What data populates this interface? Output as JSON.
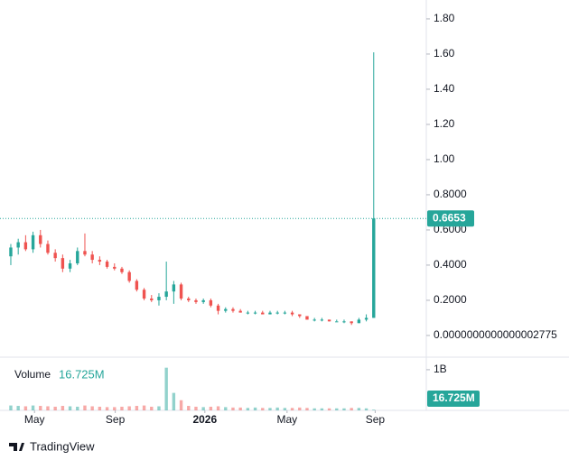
{
  "chart_data": {
    "type": "candlestick",
    "up_color": "#26a69a",
    "down_color": "#ef5350",
    "grid": false,
    "open": [
      0.45,
      0.5,
      0.53,
      0.49,
      0.57,
      0.52,
      0.47,
      0.44,
      0.38,
      0.41,
      0.48,
      0.46,
      0.43,
      0.42,
      0.39,
      0.38,
      0.36,
      0.31,
      0.26,
      0.21,
      0.2,
      0.22,
      0.25,
      0.29,
      0.21,
      0.2,
      0.19,
      0.2,
      0.17,
      0.14,
      0.15,
      0.14,
      0.13,
      0.13,
      0.13,
      0.12,
      0.13,
      0.13,
      0.13,
      0.12,
      0.11,
      0.09,
      0.09,
      0.09,
      0.08,
      0.08,
      0.08,
      0.07,
      0.09,
      0.1
    ],
    "high": [
      0.52,
      0.55,
      0.57,
      0.59,
      0.6,
      0.54,
      0.49,
      0.46,
      0.43,
      0.5,
      0.58,
      0.48,
      0.45,
      0.43,
      0.41,
      0.39,
      0.37,
      0.32,
      0.27,
      0.23,
      0.24,
      0.42,
      0.31,
      0.3,
      0.22,
      0.21,
      0.21,
      0.21,
      0.18,
      0.16,
      0.16,
      0.15,
      0.14,
      0.14,
      0.14,
      0.14,
      0.14,
      0.14,
      0.14,
      0.12,
      0.11,
      0.1,
      0.1,
      0.09,
      0.09,
      0.09,
      0.08,
      0.1,
      0.12,
      1.61
    ],
    "low": [
      0.4,
      0.46,
      0.48,
      0.47,
      0.5,
      0.46,
      0.42,
      0.36,
      0.36,
      0.4,
      0.45,
      0.41,
      0.4,
      0.38,
      0.37,
      0.35,
      0.3,
      0.25,
      0.2,
      0.19,
      0.17,
      0.2,
      0.18,
      0.2,
      0.19,
      0.18,
      0.18,
      0.16,
      0.12,
      0.13,
      0.13,
      0.13,
      0.12,
      0.12,
      0.12,
      0.12,
      0.12,
      0.12,
      0.11,
      0.1,
      0.09,
      0.08,
      0.08,
      0.08,
      0.08,
      0.07,
      0.06,
      0.07,
      0.08,
      0.1
    ],
    "close": [
      0.5,
      0.53,
      0.49,
      0.57,
      0.52,
      0.47,
      0.44,
      0.38,
      0.41,
      0.48,
      0.46,
      0.43,
      0.42,
      0.39,
      0.38,
      0.36,
      0.31,
      0.26,
      0.21,
      0.2,
      0.22,
      0.25,
      0.29,
      0.21,
      0.2,
      0.19,
      0.2,
      0.17,
      0.14,
      0.15,
      0.14,
      0.13,
      0.13,
      0.13,
      0.12,
      0.13,
      0.13,
      0.13,
      0.12,
      0.11,
      0.09,
      0.09,
      0.09,
      0.08,
      0.08,
      0.08,
      0.07,
      0.09,
      0.1,
      0.6653
    ],
    "volume": {
      "name": "Volume",
      "values": [
        120000000,
        110000000,
        100000000,
        120000000,
        110000000,
        100000000,
        90000000,
        110000000,
        100000000,
        90000000,
        120000000,
        100000000,
        90000000,
        80000000,
        80000000,
        90000000,
        100000000,
        110000000,
        120000000,
        90000000,
        100000000,
        1050000000,
        430000000,
        250000000,
        110000000,
        90000000,
        80000000,
        90000000,
        100000000,
        80000000,
        70000000,
        70000000,
        60000000,
        70000000,
        60000000,
        60000000,
        70000000,
        60000000,
        60000000,
        70000000,
        60000000,
        50000000,
        50000000,
        50000000,
        50000000,
        50000000,
        60000000,
        60000000,
        50000000,
        16725000
      ],
      "value_labels": [
        null,
        null,
        null,
        null,
        null,
        null,
        null,
        null,
        null,
        null,
        null,
        null,
        null,
        null,
        null,
        null,
        null,
        null,
        null,
        null,
        null,
        null,
        null,
        null,
        null,
        null,
        null,
        null,
        null,
        null,
        null,
        null,
        null,
        null,
        null,
        null,
        null,
        null,
        null,
        null,
        null,
        null,
        null,
        null,
        null,
        null,
        null,
        null,
        null,
        "16.725M"
      ],
      "ylim": [
        0,
        1220000000
      ],
      "yticks": [
        {
          "value": 1000000000,
          "label": "1B"
        }
      ]
    },
    "xlim": [
      -0.24,
      56.1
    ],
    "xticks": [
      {
        "value": 3.2,
        "label": "May"
      },
      {
        "value": 14.1,
        "label": "Sep"
      },
      {
        "value": 26.2,
        "label": "2026"
      },
      {
        "value": 37.3,
        "label": "May"
      },
      {
        "value": 49.2,
        "label": "Sep"
      }
    ],
    "ylim": [
      -0.108,
      1.892
    ],
    "yticks": [
      {
        "value": 1.8,
        "label": "1.80"
      },
      {
        "value": 1.6,
        "label": "1.60"
      },
      {
        "value": 1.4,
        "label": "1.40"
      },
      {
        "value": 1.2,
        "label": "1.20"
      },
      {
        "value": 1.0,
        "label": "1.00"
      },
      {
        "value": 0.8,
        "label": "0.8000"
      },
      {
        "value": 0.6,
        "label": "0.6000"
      },
      {
        "value": 0.4,
        "label": "0.4000"
      },
      {
        "value": 0.2,
        "label": "0.2000"
      },
      {
        "value": 2.775e-16,
        "label": "0.0000000000000002775"
      }
    ],
    "branding": "TradingView"
  }
}
